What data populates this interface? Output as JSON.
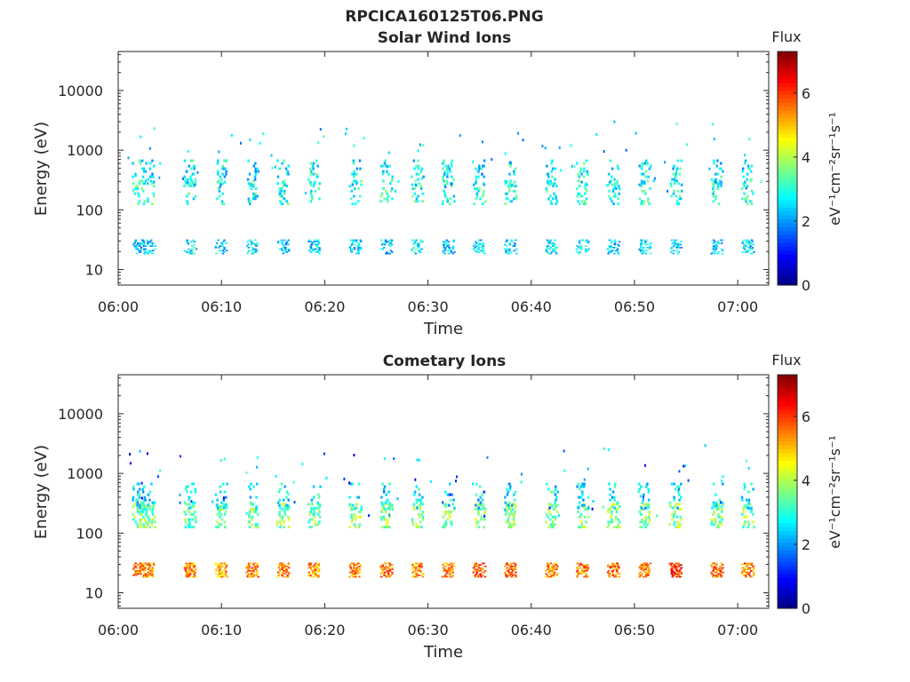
{
  "figure_title": "RPCICA160125T06.PNG",
  "colormap": [
    "#00007f",
    "#0000ff",
    "#0080ff",
    "#00ffff",
    "#80ff80",
    "#ffff00",
    "#ff8000",
    "#ff0000",
    "#7f0000"
  ],
  "chart_data": [
    {
      "type": "heatmap",
      "title": "Solar Wind Ions",
      "xlabel": "Time",
      "ylabel": "Energy (eV)",
      "yscale": "log",
      "xlim": [
        "06:00",
        "07:03"
      ],
      "ylim": [
        5.5,
        45000
      ],
      "xticks": [
        "06:00",
        "06:10",
        "06:20",
        "06:30",
        "06:40",
        "06:50",
        "07:00"
      ],
      "yticks": [
        "10",
        "100",
        "1000",
        "10000"
      ],
      "colorbar": {
        "label": "Flux",
        "units_label": "eV⁻¹cm⁻²sr⁻¹s⁻¹",
        "range": [
          0,
          7.3
        ],
        "ticks": [
          "0",
          "2",
          "4",
          "6"
        ]
      },
      "grid": false,
      "bursts": [
        {
          "time": "06:02",
          "low_band_flux": 2.2,
          "mid_band_flux": 3.2,
          "high_band_flux": 2.8
        },
        {
          "time": "06:03",
          "low_band_flux": 2.5,
          "mid_band_flux": 3.0,
          "high_band_flux": 2.6
        },
        {
          "time": "06:07",
          "low_band_flux": 2.5,
          "mid_band_flux": 3.0,
          "high_band_flux": 2.7
        },
        {
          "time": "06:10",
          "low_band_flux": 2.4,
          "mid_band_flux": 2.9,
          "high_band_flux": 2.6
        },
        {
          "time": "06:13",
          "low_band_flux": 2.6,
          "mid_band_flux": 2.9,
          "high_band_flux": 2.5
        },
        {
          "time": "06:16",
          "low_band_flux": 2.3,
          "mid_band_flux": 3.0,
          "high_band_flux": 2.7
        },
        {
          "time": "06:19",
          "low_band_flux": 2.4,
          "mid_band_flux": 2.8,
          "high_band_flux": 2.8
        },
        {
          "time": "06:23",
          "low_band_flux": 2.5,
          "mid_band_flux": 2.9,
          "high_band_flux": 2.6
        },
        {
          "time": "06:26",
          "low_band_flux": 2.4,
          "mid_band_flux": 3.0,
          "high_band_flux": 2.7
        },
        {
          "time": "06:29",
          "low_band_flux": 2.6,
          "mid_band_flux": 2.9,
          "high_band_flux": 2.6
        },
        {
          "time": "06:32",
          "low_band_flux": 2.3,
          "mid_band_flux": 2.8,
          "high_band_flux": 2.7
        },
        {
          "time": "06:35",
          "low_band_flux": 2.5,
          "mid_band_flux": 3.0,
          "high_band_flux": 2.5
        },
        {
          "time": "06:38",
          "low_band_flux": 2.4,
          "mid_band_flux": 2.9,
          "high_band_flux": 2.7
        },
        {
          "time": "06:42",
          "low_band_flux": 2.5,
          "mid_band_flux": 3.0,
          "high_band_flux": 2.6
        },
        {
          "time": "06:45",
          "low_band_flux": 2.6,
          "mid_band_flux": 3.2,
          "high_band_flux": 2.9
        },
        {
          "time": "06:48",
          "low_band_flux": 2.4,
          "mid_band_flux": 2.9,
          "high_band_flux": 2.6
        },
        {
          "time": "06:51",
          "low_band_flux": 2.5,
          "mid_band_flux": 3.0,
          "high_band_flux": 2.7
        },
        {
          "time": "06:54",
          "low_band_flux": 2.4,
          "mid_band_flux": 2.9,
          "high_band_flux": 2.7
        },
        {
          "time": "06:58",
          "low_band_flux": 2.3,
          "mid_band_flux": 3.0,
          "high_band_flux": 2.6
        },
        {
          "time": "07:01",
          "low_band_flux": 2.5,
          "mid_band_flux": 2.9,
          "high_band_flux": 2.7
        }
      ]
    },
    {
      "type": "heatmap",
      "title": "Cometary Ions",
      "xlabel": "Time",
      "ylabel": "Energy (eV)",
      "yscale": "log",
      "xlim": [
        "06:00",
        "07:03"
      ],
      "ylim": [
        5.5,
        45000
      ],
      "xticks": [
        "06:00",
        "06:10",
        "06:20",
        "06:30",
        "06:40",
        "06:50",
        "07:00"
      ],
      "yticks": [
        "10",
        "100",
        "1000",
        "10000"
      ],
      "colorbar": {
        "label": "Flux",
        "units_label": "eV⁻¹cm⁻²sr⁻¹s⁻¹",
        "range": [
          0,
          7.3
        ],
        "ticks": [
          "0",
          "2",
          "4",
          "6"
        ]
      },
      "grid": false,
      "bursts": [
        {
          "time": "06:02",
          "low_band_flux": 5.5,
          "mid_band_flux": 3.6,
          "high_band_flux": 2.6
        },
        {
          "time": "06:03",
          "low_band_flux": 5.3,
          "mid_band_flux": 3.5,
          "high_band_flux": 2.7
        },
        {
          "time": "06:07",
          "low_band_flux": 5.4,
          "mid_band_flux": 3.5,
          "high_band_flux": 2.6
        },
        {
          "time": "06:10",
          "low_band_flux": 5.2,
          "mid_band_flux": 3.6,
          "high_band_flux": 2.5
        },
        {
          "time": "06:13",
          "low_band_flux": 5.5,
          "mid_band_flux": 3.5,
          "high_band_flux": 2.6
        },
        {
          "time": "06:16",
          "low_band_flux": 5.4,
          "mid_band_flux": 3.7,
          "high_band_flux": 2.6
        },
        {
          "time": "06:19",
          "low_band_flux": 5.3,
          "mid_band_flux": 3.6,
          "high_band_flux": 2.7
        },
        {
          "time": "06:23",
          "low_band_flux": 5.5,
          "mid_band_flux": 3.6,
          "high_band_flux": 2.6
        },
        {
          "time": "06:26",
          "low_band_flux": 5.6,
          "mid_band_flux": 3.7,
          "high_band_flux": 2.5
        },
        {
          "time": "06:29",
          "low_band_flux": 5.4,
          "mid_band_flux": 3.6,
          "high_band_flux": 2.6
        },
        {
          "time": "06:32",
          "low_band_flux": 5.5,
          "mid_band_flux": 3.6,
          "high_band_flux": 2.6
        },
        {
          "time": "06:35",
          "low_band_flux": 5.6,
          "mid_band_flux": 3.8,
          "high_band_flux": 2.6
        },
        {
          "time": "06:38",
          "low_band_flux": 5.7,
          "mid_band_flux": 3.7,
          "high_band_flux": 2.6
        },
        {
          "time": "06:42",
          "low_band_flux": 5.4,
          "mid_band_flux": 3.6,
          "high_band_flux": 2.7
        },
        {
          "time": "06:45",
          "low_band_flux": 5.5,
          "mid_band_flux": 3.7,
          "high_band_flux": 2.6
        },
        {
          "time": "06:48",
          "low_band_flux": 5.6,
          "mid_band_flux": 3.7,
          "high_band_flux": 2.6
        },
        {
          "time": "06:51",
          "low_band_flux": 5.5,
          "mid_band_flux": 3.7,
          "high_band_flux": 2.6
        },
        {
          "time": "06:54",
          "low_band_flux": 6.1,
          "mid_band_flux": 3.7,
          "high_band_flux": 2.6
        },
        {
          "time": "06:58",
          "low_band_flux": 5.6,
          "mid_band_flux": 3.6,
          "high_band_flux": 2.6
        },
        {
          "time": "07:01",
          "low_band_flux": 5.5,
          "mid_band_flux": 3.6,
          "high_band_flux": 2.6
        }
      ]
    }
  ]
}
